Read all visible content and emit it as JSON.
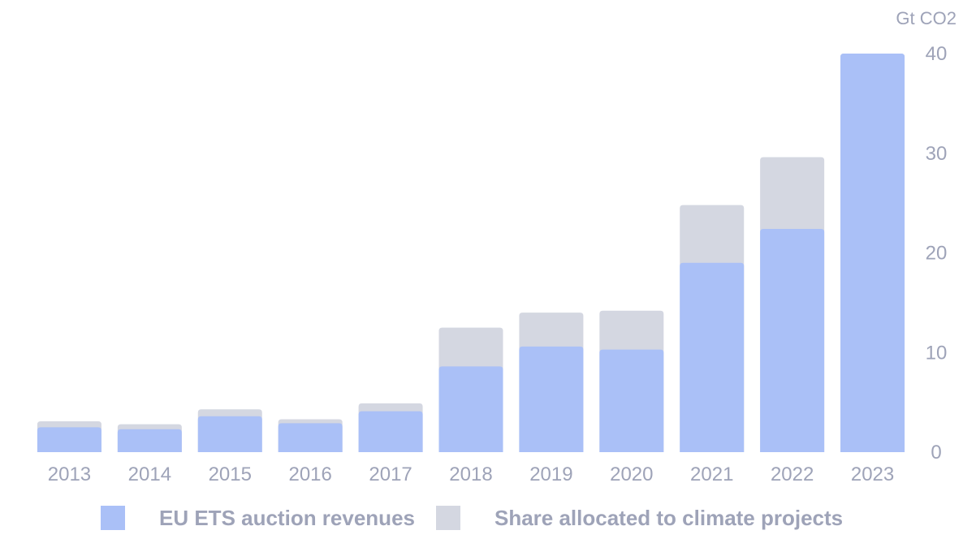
{
  "chart_data": {
    "type": "bar",
    "stacked": false,
    "overlay": true,
    "categories": [
      "2013",
      "2014",
      "2015",
      "2016",
      "2017",
      "2018",
      "2019",
      "2020",
      "2021",
      "2022",
      "2023"
    ],
    "series": [
      {
        "name": "EU ETS auction revenues",
        "color": "#aac0f7",
        "values": [
          2.5,
          2.3,
          3.6,
          2.9,
          4.1,
          8.6,
          10.6,
          10.3,
          19.0,
          22.4,
          40.0
        ]
      },
      {
        "name": "Share allocated to climate projects",
        "color": "#d4d7e1",
        "values": [
          3.1,
          2.8,
          4.3,
          3.3,
          4.9,
          12.5,
          14.0,
          14.2,
          24.8,
          29.6,
          40.0
        ]
      }
    ],
    "yaxis_unit": "Gt CO2",
    "yticks": [
      0,
      10,
      20,
      30,
      40
    ],
    "ylim": [
      0,
      40
    ],
    "yaxis_position": "right",
    "grid": false,
    "legend_position": "bottom"
  }
}
